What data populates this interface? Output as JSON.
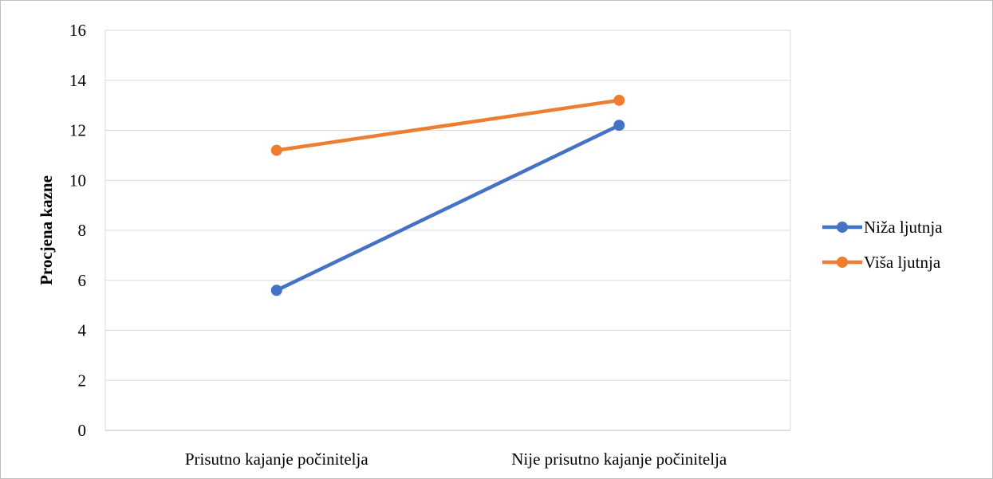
{
  "chart_data": {
    "type": "line",
    "categories": [
      "Prisutno kajanje počinitelja",
      "Nije prisutno kajanje počinitelja"
    ],
    "series": [
      {
        "name": "Niža ljutnja",
        "values": [
          5.6,
          12.2
        ],
        "color": "#4472C4"
      },
      {
        "name": "Viša ljutnja",
        "values": [
          11.2,
          13.2
        ],
        "color": "#ED7D31"
      }
    ],
    "title": "",
    "xlabel": "",
    "ylabel": "Procjena kazne",
    "ylim": [
      0,
      16
    ],
    "yticks": [
      0,
      2,
      4,
      6,
      8,
      10,
      12,
      14,
      16
    ],
    "grid": true,
    "legend_position": "right"
  }
}
